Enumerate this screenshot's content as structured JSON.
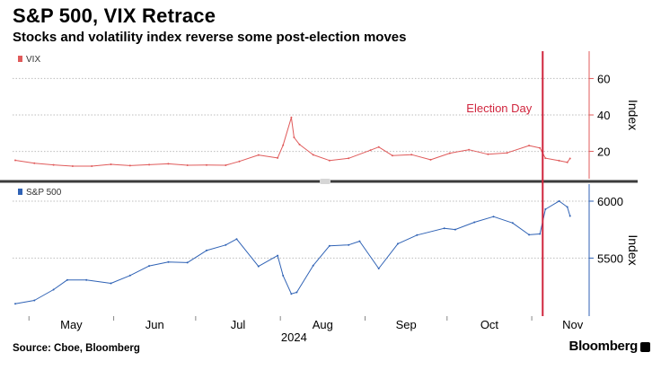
{
  "header": {
    "title": "S&P 500, VIX Retrace",
    "subtitle": "Stocks and volatility index reverse some post-election moves"
  },
  "footer": {
    "source": "Source: Cboe, Bloomberg",
    "brand": "Bloomberg"
  },
  "colors": {
    "vix": "#e05b5b",
    "spx": "#2f62b5",
    "election": "#d0253d",
    "separator": "#3b3b3b",
    "grid": "#bdbdbd"
  },
  "chart_data": [
    {
      "type": "line",
      "panel": "top",
      "title": "",
      "legend": "VIX",
      "legend_position": "top-left",
      "ylabel": "Index",
      "ylim": [
        5,
        75
      ],
      "yticks": [
        20,
        40,
        60
      ],
      "grid": true,
      "annotation": {
        "label": "Election Day",
        "date": "2024-11-05"
      },
      "series": [
        {
          "name": "VIX",
          "points": [
            [
              "2024-04-26",
              15.1
            ],
            [
              "2024-05-03",
              13.5
            ],
            [
              "2024-05-10",
              12.6
            ],
            [
              "2024-05-17",
              11.9
            ],
            [
              "2024-05-24",
              11.9
            ],
            [
              "2024-05-31",
              12.9
            ],
            [
              "2024-06-07",
              12.2
            ],
            [
              "2024-06-14",
              12.7
            ],
            [
              "2024-06-21",
              13.2
            ],
            [
              "2024-06-28",
              12.4
            ],
            [
              "2024-07-05",
              12.5
            ],
            [
              "2024-07-12",
              12.4
            ],
            [
              "2024-07-17",
              14.5
            ],
            [
              "2024-07-24",
              18.0
            ],
            [
              "2024-07-31",
              16.4
            ],
            [
              "2024-08-02",
              23.4
            ],
            [
              "2024-08-05",
              38.6
            ],
            [
              "2024-08-06",
              27.7
            ],
            [
              "2024-08-08",
              23.8
            ],
            [
              "2024-08-13",
              18.1
            ],
            [
              "2024-08-19",
              15.0
            ],
            [
              "2024-08-26",
              16.2
            ],
            [
              "2024-09-03",
              20.7
            ],
            [
              "2024-09-06",
              22.4
            ],
            [
              "2024-09-11",
              17.7
            ],
            [
              "2024-09-18",
              18.2
            ],
            [
              "2024-09-25",
              15.4
            ],
            [
              "2024-10-02",
              19.0
            ],
            [
              "2024-10-09",
              20.9
            ],
            [
              "2024-10-16",
              18.4
            ],
            [
              "2024-10-23",
              19.2
            ],
            [
              "2024-10-31",
              23.2
            ],
            [
              "2024-11-04",
              21.9
            ],
            [
              "2024-11-06",
              16.3
            ],
            [
              "2024-11-11",
              14.9
            ],
            [
              "2024-11-14",
              14.0
            ],
            [
              "2024-11-15",
              16.1
            ]
          ]
        }
      ]
    },
    {
      "type": "line",
      "panel": "bottom",
      "title": "",
      "legend": "S&P 500",
      "legend_position": "top-left",
      "ylabel": "Index",
      "ylim": [
        4990,
        6150
      ],
      "yticks": [
        5500,
        6000
      ],
      "grid": true,
      "xlabel": "2024",
      "x_ticks": [
        "May",
        "Jun",
        "Jul",
        "Aug",
        "Sep",
        "Oct",
        "Nov"
      ],
      "series": [
        {
          "name": "S&P 500",
          "points": [
            [
              "2024-04-26",
              5099
            ],
            [
              "2024-05-03",
              5128
            ],
            [
              "2024-05-10",
              5223
            ],
            [
              "2024-05-15",
              5308
            ],
            [
              "2024-05-22",
              5307
            ],
            [
              "2024-05-31",
              5278
            ],
            [
              "2024-06-07",
              5347
            ],
            [
              "2024-06-14",
              5431
            ],
            [
              "2024-06-21",
              5465
            ],
            [
              "2024-06-28",
              5460
            ],
            [
              "2024-07-05",
              5567
            ],
            [
              "2024-07-12",
              5615
            ],
            [
              "2024-07-16",
              5667
            ],
            [
              "2024-07-24",
              5427
            ],
            [
              "2024-07-31",
              5522
            ],
            [
              "2024-08-02",
              5346
            ],
            [
              "2024-08-05",
              5186
            ],
            [
              "2024-08-07",
              5199
            ],
            [
              "2024-08-13",
              5434
            ],
            [
              "2024-08-19",
              5608
            ],
            [
              "2024-08-26",
              5616
            ],
            [
              "2024-08-30",
              5648
            ],
            [
              "2024-09-06",
              5408
            ],
            [
              "2024-09-13",
              5626
            ],
            [
              "2024-09-20",
              5702
            ],
            [
              "2024-09-30",
              5762
            ],
            [
              "2024-10-04",
              5751
            ],
            [
              "2024-10-11",
              5815
            ],
            [
              "2024-10-18",
              5864
            ],
            [
              "2024-10-25",
              5808
            ],
            [
              "2024-10-31",
              5705
            ],
            [
              "2024-11-04",
              5712
            ],
            [
              "2024-11-06",
              5929
            ],
            [
              "2024-11-11",
              6001
            ],
            [
              "2024-11-14",
              5949
            ],
            [
              "2024-11-15",
              5870
            ]
          ]
        }
      ]
    }
  ]
}
